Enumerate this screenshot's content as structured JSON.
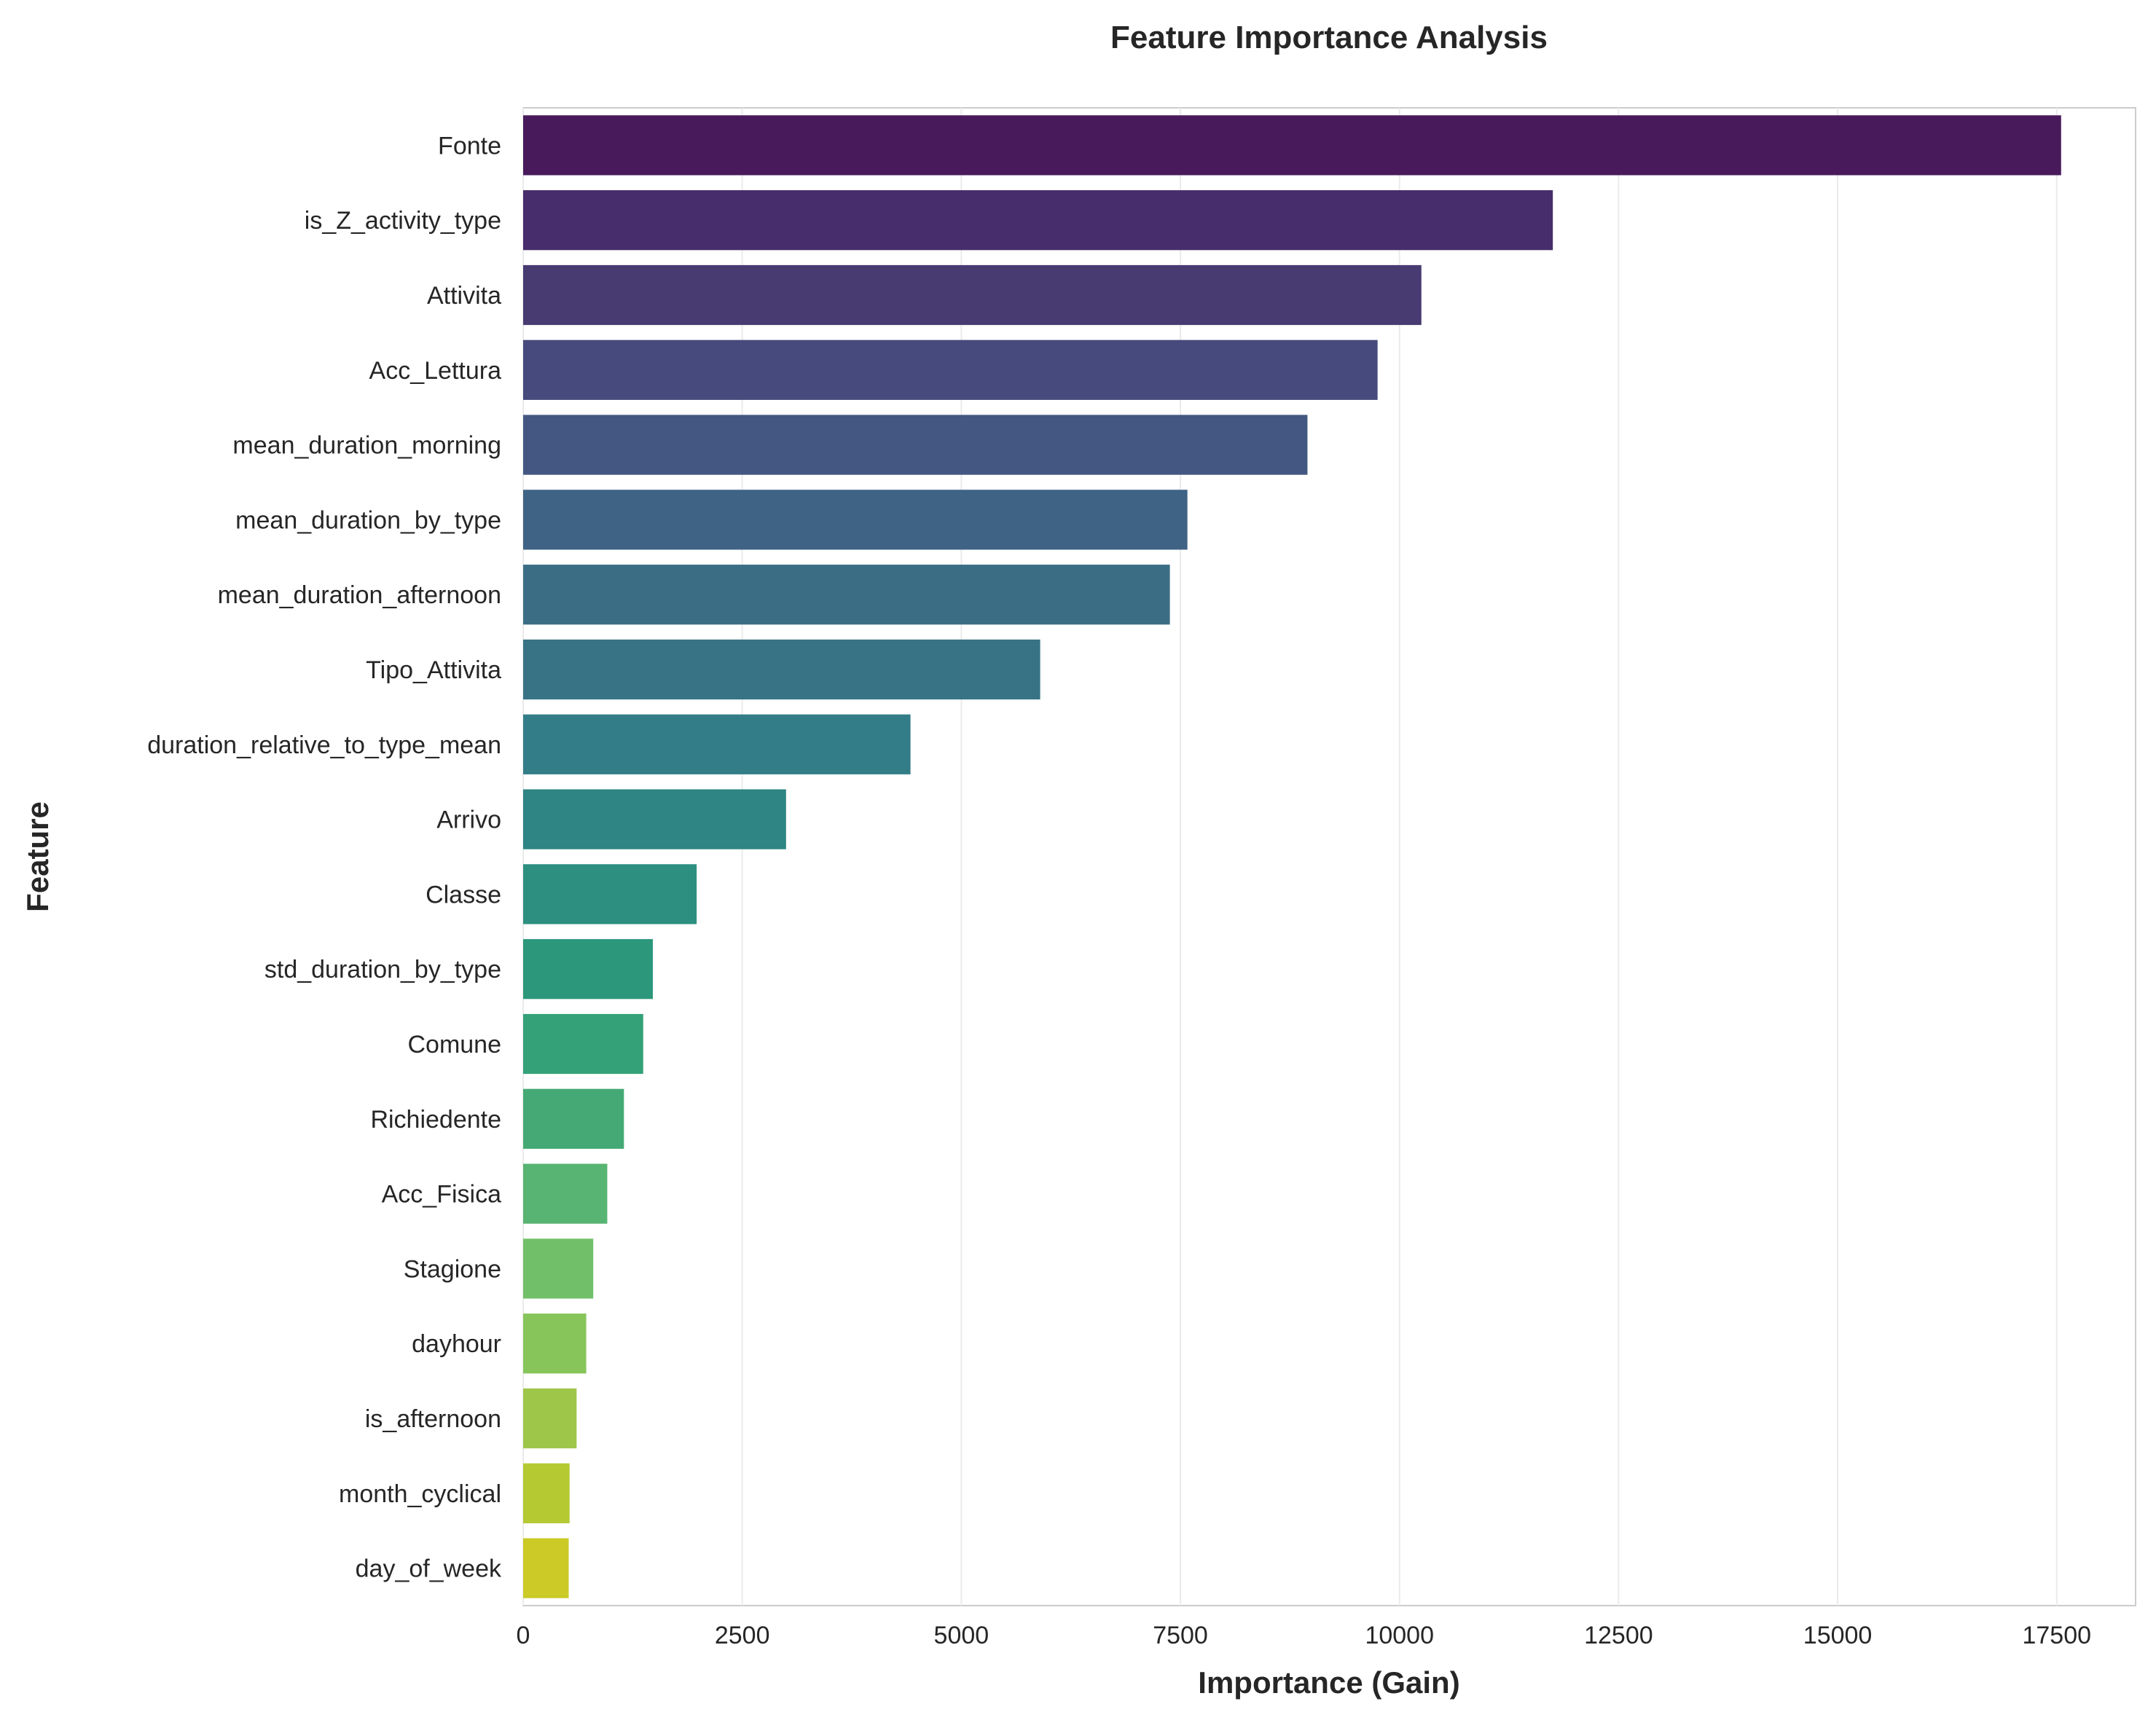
{
  "chart_data": {
    "type": "bar",
    "orientation": "horizontal",
    "title": "Feature Importance Analysis",
    "xlabel": "Importance (Gain)",
    "ylabel": "Feature",
    "xlim": [
      0,
      18400
    ],
    "xticks": [
      0,
      2500,
      5000,
      7500,
      10000,
      12500,
      15000,
      17500
    ],
    "grid": "vertical",
    "colormap": "viridis",
    "categories": [
      "Fonte",
      "is_Z_activity_type",
      "Attivita",
      "Acc_Lettura",
      "mean_duration_morning",
      "mean_duration_by_type",
      "mean_duration_afternoon",
      "Tipo_Attivita",
      "duration_relative_to_type_mean",
      "Arrivo",
      "Classe",
      "std_duration_by_type",
      "Comune",
      "Richiedente",
      "Acc_Fisica",
      "Stagione",
      "dayhour",
      "is_afternoon",
      "month_cyclical",
      "day_of_week"
    ],
    "values": [
      17550,
      11750,
      10250,
      9750,
      8950,
      7580,
      7380,
      5900,
      4420,
      3000,
      1980,
      1480,
      1370,
      1150,
      960,
      800,
      720,
      610,
      530,
      520
    ],
    "colors": [
      "#481a5b",
      "#472d6b",
      "#483b72",
      "#464a7c",
      "#435782",
      "#3f6384",
      "#3b6e85",
      "#377285",
      "#327d88",
      "#2e8583",
      "#2c8f7f",
      "#2c977b",
      "#34a178",
      "#45a975",
      "#58b472",
      "#72bf69",
      "#87c55b",
      "#9ec649",
      "#b4c932",
      "#cbca27"
    ]
  }
}
